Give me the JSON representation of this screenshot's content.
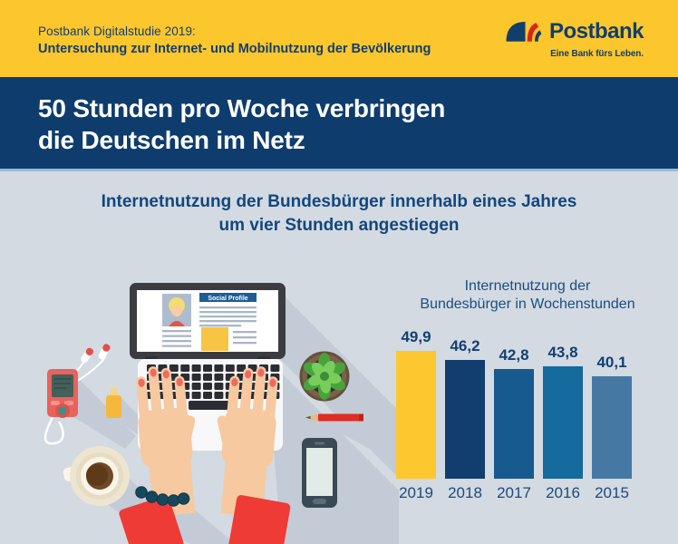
{
  "header": {
    "study_line1": "Postbank Digitalstudie 2019:",
    "study_line2": "Untersuchung zur Internet- und Mobilnutzung der Bevölkerung"
  },
  "logo": {
    "name": "Postbank",
    "tagline": "Eine Bank fürs Leben."
  },
  "banner": {
    "line1": "50 Stunden pro Woche verbringen",
    "line2": "die Deutschen im Netz"
  },
  "subtitle": {
    "line1": "Internetnutzung der Bundesbürger innerhalb eines Jahres",
    "line2": "um vier Stunden angestiegen"
  },
  "illustration": {
    "social_profile_label": "Social Profile"
  },
  "chart_data": {
    "type": "bar",
    "title": "Internetnutzung der Bundesbürger in Wochenstunden",
    "title_lines": [
      "Internetnutzung der",
      "Bundesbürger in Wochenstunden"
    ],
    "categories": [
      "2019",
      "2018",
      "2017",
      "2016",
      "2015"
    ],
    "values": [
      49.9,
      46.2,
      42.8,
      43.8,
      40.1
    ],
    "value_labels": [
      "49,9",
      "46,2",
      "42,8",
      "43,8",
      "40,1"
    ],
    "unit": "Wochenstunden",
    "bar_colors": [
      "#fdc72f",
      "#123e6e",
      "#175a90",
      "#156a9e",
      "#4579a4"
    ],
    "ylim": [
      0,
      50
    ],
    "grid": false,
    "legend": false
  },
  "colors": {
    "header_bg": "#fcc62d",
    "banner_bg": "#0e3c6d",
    "body_bg": "#d3dae2",
    "separator": "#9cb8d3",
    "navy_text": "#123e6e",
    "white": "#ffffff",
    "accent_red": "#e2231a"
  }
}
